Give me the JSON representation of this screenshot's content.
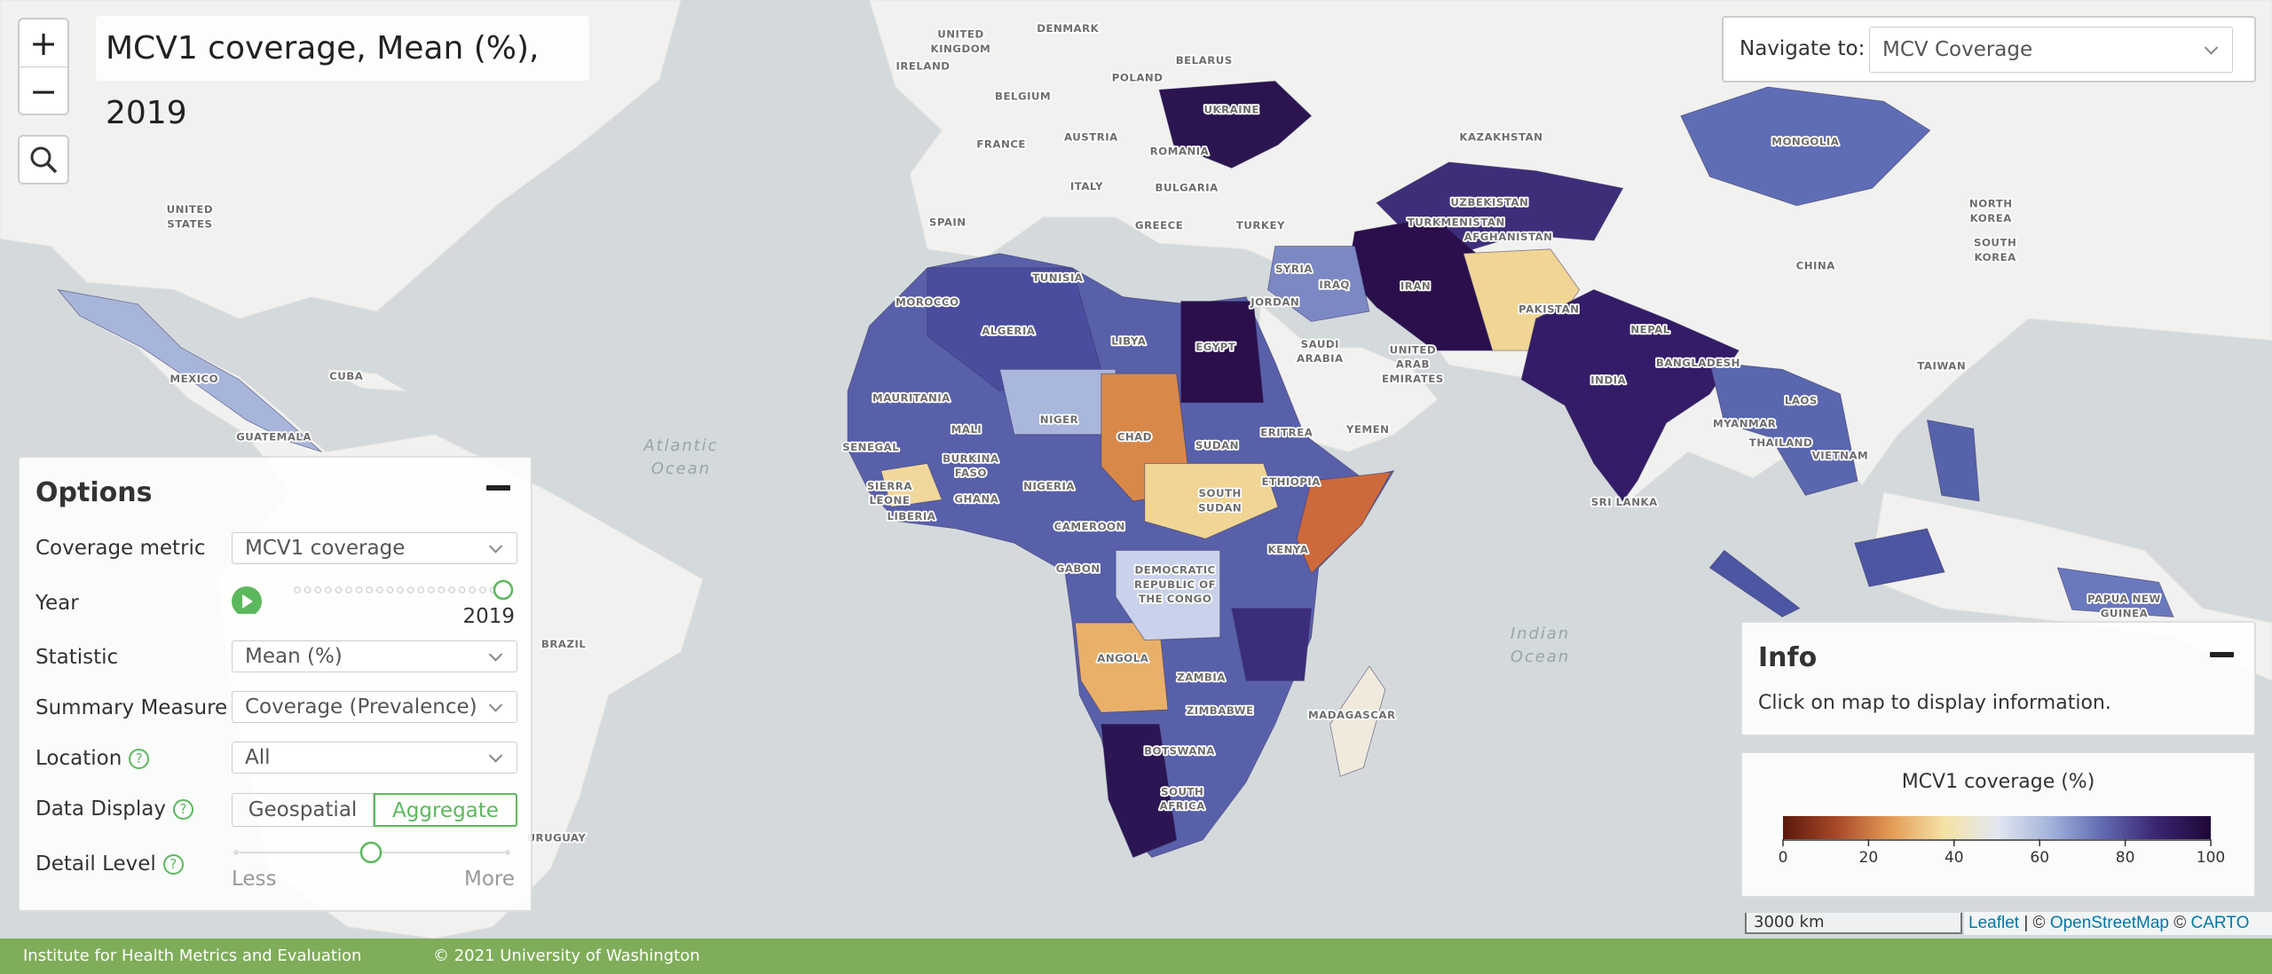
{
  "map_title": "MCV1 coverage, Mean (%), 2019",
  "zoom_controls": {
    "zoom_in": "+",
    "zoom_out": "−"
  },
  "navigate": {
    "label": "Navigate to:",
    "selected": "MCV Coverage"
  },
  "options": {
    "title": "Options",
    "coverage_metric": {
      "label": "Coverage metric",
      "value": "MCV1 coverage"
    },
    "year": {
      "label": "Year",
      "value": "2019"
    },
    "statistic": {
      "label": "Statistic",
      "value": "Mean (%)"
    },
    "summary_measure": {
      "label": "Summary Measure",
      "value": "Coverage (Prevalence)"
    },
    "location": {
      "label": "Location",
      "value": "All"
    },
    "data_display": {
      "label": "Data Display",
      "choices": [
        "Geospatial",
        "Aggregate"
      ],
      "selected": 1
    },
    "detail_level": {
      "label": "Detail Level",
      "min_label": "Less",
      "max_label": "More"
    }
  },
  "info": {
    "title": "Info",
    "text": "Click on map to display information."
  },
  "legend": {
    "title": "MCV1 coverage (%)",
    "range": [
      0,
      100
    ],
    "ticks": [
      0,
      20,
      40,
      60,
      80,
      100
    ],
    "colors": [
      "#5a190c",
      "#a8482a",
      "#e39a55",
      "#f4e2a4",
      "#e3e8f1",
      "#a3b3da",
      "#5f68b0",
      "#3a2470",
      "#1f0738"
    ]
  },
  "map_labels": [
    [
      "UNITED",
      "KINGDOM"
    ],
    [
      "IRELAND"
    ],
    [
      "DENMARK"
    ],
    [
      "BELARUS"
    ],
    [
      "POLAND"
    ],
    [
      "BELGIUM"
    ],
    [
      "UKRAINE"
    ],
    [
      "KAZAKHSTAN"
    ],
    [
      "FRANCE"
    ],
    [
      "AUSTRIA"
    ],
    [
      "ROMANIA"
    ],
    [
      "MONGOLIA"
    ],
    [
      "ITALY"
    ],
    [
      "BULGARIA"
    ],
    [
      "UZBEKISTAN"
    ],
    [
      "TURKMENISTAN"
    ],
    [
      "UNITED",
      "STATES"
    ],
    [
      "NORTH",
      "KOREA"
    ],
    [
      "SPAIN"
    ],
    [
      "GREECE"
    ],
    [
      "TURKEY"
    ],
    [
      "SOUTH",
      "KOREA"
    ],
    [
      "CHINA"
    ],
    [
      "SYRIA"
    ],
    [
      "AFGHANISTAN"
    ],
    [
      "IRAQ"
    ],
    [
      "IRAN"
    ],
    [
      "PAKISTAN"
    ],
    [
      "TUNISIA"
    ],
    [
      "MOROCCO"
    ],
    [
      "JORDAN"
    ],
    [
      "ALGERIA"
    ],
    [
      "LIBYA"
    ],
    [
      "EGYPT"
    ],
    [
      "SAUDI",
      "ARABIA"
    ],
    [
      "UNITED",
      "ARAB",
      "EMIRATES"
    ],
    [
      "NEPAL"
    ],
    [
      "BANGLADESH"
    ],
    [
      "INDIA"
    ],
    [
      "TAIWAN"
    ],
    [
      "MEXICO"
    ],
    [
      "CUBA"
    ],
    [
      "MAURITANIA"
    ],
    [
      "LAOS"
    ],
    [
      "MALI"
    ],
    [
      "NIGER"
    ],
    [
      "CHAD"
    ],
    [
      "MYANMAR"
    ],
    [
      "THAILAND"
    ],
    [
      "ERITREA"
    ],
    [
      "YEMEN"
    ],
    [
      "SUDAN"
    ],
    [
      "SENEGAL"
    ],
    [
      "BURKINA",
      "FASO"
    ],
    [
      "VIETNAM"
    ],
    [
      "GUATEMALA"
    ],
    [
      "NIGERIA"
    ],
    [
      "ETHIOPIA"
    ],
    [
      "SIERRA",
      "LEONE"
    ],
    [
      "SOUTH",
      "SUDAN"
    ],
    [
      "GHANA"
    ],
    [
      "SRI LANKA"
    ],
    [
      "LIBERIA"
    ],
    [
      "CAMEROON"
    ],
    [
      "KENYA"
    ],
    [
      "GABON"
    ],
    [
      "DEMOCRATIC",
      "REPUBLIC OF",
      "THE CONGO"
    ],
    [
      "PAPUA NEW",
      "GUINEA"
    ],
    [
      "BRAZIL"
    ],
    [
      "ANGOLA"
    ],
    [
      "ZAMBIA"
    ],
    [
      "ZIMBABWE"
    ],
    [
      "MADAGASCAR"
    ],
    [
      "BOTSWANA"
    ],
    [
      "SOUTH",
      "AFRICA"
    ],
    [
      "URUGUAY"
    ]
  ],
  "ocean_labels": [
    [
      "Atlantic",
      "Ocean"
    ],
    [
      "Indian",
      "Ocean"
    ]
  ],
  "scale_bar": "3000 km",
  "attribution": [
    "Leaflet",
    "| ©",
    "OpenStreetMap",
    "©",
    "CARTO"
  ],
  "footer": {
    "organization": "Institute for Health Metrics and Evaluation",
    "copyright": "© 2021 University of Washington"
  }
}
